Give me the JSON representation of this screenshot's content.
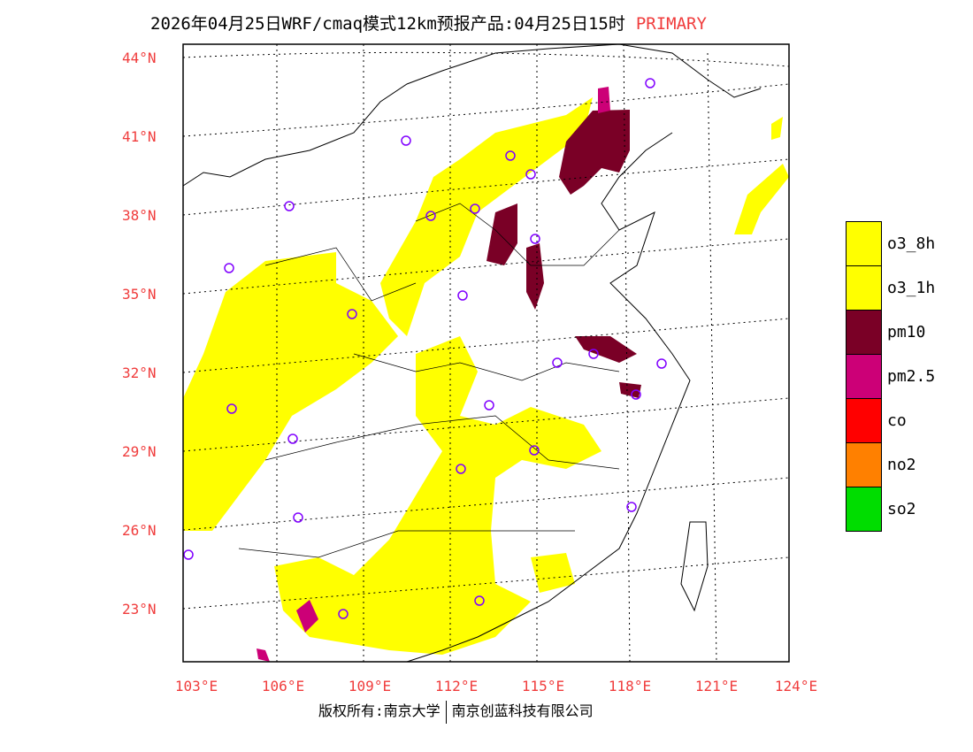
{
  "title": {
    "text": "2026年04月25日WRF/cmaq模式12km预报产品:04月25日15时",
    "mode": "PRIMARY"
  },
  "lat_labels": [
    "44°N",
    "41°N",
    "38°N",
    "35°N",
    "32°N",
    "29°N",
    "26°N",
    "23°N"
  ],
  "lon_labels": [
    "103°E",
    "106°E",
    "109°E",
    "112°E",
    "115°E",
    "118°E",
    "121°E",
    "124°E"
  ],
  "legend": [
    {
      "label": "o3_8h",
      "color": "#ffff00"
    },
    {
      "label": "o3_1h",
      "color": "#ffff00"
    },
    {
      "label": "pm10",
      "color": "#7a0026"
    },
    {
      "label": "pm2.5",
      "color": "#cc0077"
    },
    {
      "label": "co",
      "color": "#ff0000"
    },
    {
      "label": "no2",
      "color": "#ff8000"
    },
    {
      "label": "so2",
      "color": "#00dd00"
    }
  ],
  "footer": {
    "left": "版权所有:南京大学",
    "right": "南京创蓝科技有限公司"
  }
}
